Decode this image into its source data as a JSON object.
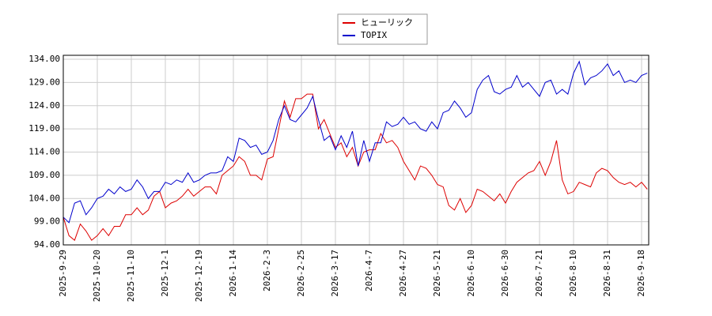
{
  "chart_data": {
    "type": "line",
    "categories": [
      "2025-9-29",
      null,
      null,
      null,
      null,
      null,
      "2025-10-20",
      null,
      null,
      null,
      null,
      null,
      "2025-11-10",
      null,
      null,
      null,
      null,
      null,
      "2025-12-1",
      null,
      null,
      null,
      null,
      null,
      "2025-12-19",
      null,
      null,
      null,
      null,
      null,
      "2026-1-14",
      null,
      null,
      null,
      null,
      null,
      "2026-2-3",
      null,
      null,
      null,
      null,
      null,
      "2026-2-25",
      null,
      null,
      null,
      null,
      null,
      "2026-3-17",
      null,
      null,
      null,
      null,
      null,
      "2026-4-7",
      null,
      null,
      null,
      null,
      null,
      "2026-4-27",
      null,
      null,
      null,
      null,
      null,
      "2026-5-21",
      null,
      null,
      null,
      null,
      null,
      "2026-6-10",
      null,
      null,
      null,
      null,
      null,
      "2026-6-30",
      null,
      null,
      null,
      null,
      null,
      "2026-7-21",
      null,
      null,
      null,
      null,
      null,
      "2026-8-10",
      null,
      null,
      null,
      null,
      null,
      "2026-8-31",
      null,
      null,
      null,
      null,
      null,
      "2026-9-18",
      null
    ],
    "series": [
      {
        "name": "ヒューリック",
        "color": "#dd0000",
        "values": [
          100,
          96,
          95,
          98.5,
          97,
          95,
          96,
          97.5,
          96,
          98,
          98,
          100.5,
          100.5,
          102,
          100.5,
          101.5,
          104.5,
          105.5,
          102,
          103,
          103.5,
          104.5,
          106,
          104.5,
          105.5,
          106.5,
          106.5,
          105,
          109,
          110,
          111,
          113,
          112,
          109,
          109,
          108,
          112.5,
          113,
          119,
          125,
          121.5,
          125.5,
          125.5,
          126.5,
          126.5,
          119,
          121,
          118,
          115,
          116,
          113,
          115,
          111,
          114,
          114.5,
          114.5,
          118,
          116,
          116.5,
          115,
          112,
          110,
          108,
          111,
          110.5,
          109,
          107,
          106.5,
          102.5,
          101.5,
          104,
          101,
          102.5,
          106,
          105.5,
          104.5,
          103.5,
          105,
          103,
          105.5,
          107.5,
          108.5,
          109.5,
          110,
          112,
          109,
          112,
          116.5,
          108,
          105,
          105.5,
          107.5,
          107,
          106.5,
          109.5,
          110.5,
          110,
          108.5,
          107.5,
          107,
          107.5,
          106.5,
          107.5,
          106
        ]
      },
      {
        "name": "TOPIX",
        "color": "#0000cc",
        "values": [
          100,
          98.8,
          103,
          103.5,
          100.5,
          102,
          104,
          104.5,
          106,
          105,
          106.5,
          105.5,
          106,
          108,
          106.5,
          104,
          105.5,
          105.5,
          107.5,
          107,
          108,
          107.5,
          109.5,
          107.5,
          108,
          109,
          109.5,
          109.5,
          110,
          113,
          112,
          117,
          116.5,
          115,
          115.5,
          113.5,
          114,
          116.5,
          121,
          124,
          121,
          120.5,
          122,
          123.5,
          126,
          121,
          116.5,
          117.5,
          114.5,
          117.5,
          115,
          118.5,
          111,
          116.5,
          112,
          116,
          116,
          120.5,
          119.5,
          120,
          121.5,
          120,
          120.5,
          119,
          118.5,
          120.5,
          119,
          122.5,
          123,
          125,
          123.5,
          121.5,
          122.5,
          127.5,
          129.5,
          130.5,
          127,
          126.5,
          127.5,
          128,
          130.5,
          128,
          129,
          127.5,
          126,
          129,
          129.5,
          126.5,
          127.5,
          126.5,
          131,
          133.5,
          128.5,
          130,
          130.5,
          131.5,
          133,
          130.5,
          131.5,
          129,
          129.5,
          129,
          130.5,
          131
        ]
      }
    ],
    "ylim": [
      94,
      134
    ],
    "yticks": [
      {
        "value": 94,
        "label": "94.00"
      },
      {
        "value": 99,
        "label": "99.00"
      },
      {
        "value": 104,
        "label": "104.00"
      },
      {
        "value": 109,
        "label": "109.00"
      },
      {
        "value": 114,
        "label": "114.00"
      },
      {
        "value": 119,
        "label": "119.00"
      },
      {
        "value": 124,
        "label": "124.00"
      },
      {
        "value": 129,
        "label": "129.00"
      },
      {
        "value": 134,
        "label": "134.00"
      }
    ],
    "grid": true
  }
}
